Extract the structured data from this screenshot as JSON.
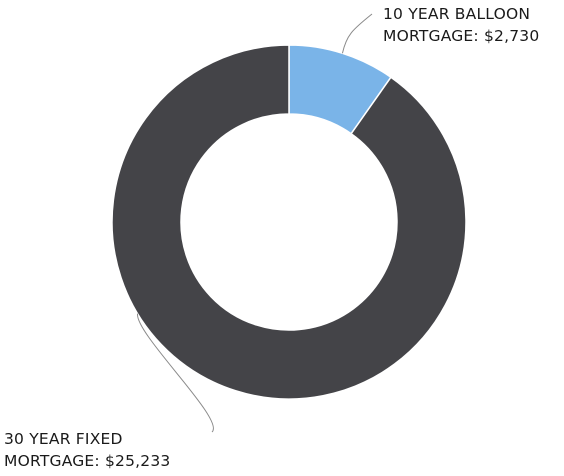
{
  "chart_data": {
    "type": "pie",
    "variant": "donut",
    "categories": [
      "10 YEAR BALLOON MORTGAGE",
      "30 YEAR FIXED MORTGAGE"
    ],
    "values": [
      2730,
      25233
    ],
    "colors": [
      "#7ab4e8",
      "#444448"
    ],
    "labels": [
      {
        "line1": "10 YEAR BALLOON",
        "line2": "MORTGAGE: $2,730"
      },
      {
        "line1": "30 YEAR FIXED",
        "line2": "MORTGAGE: $25,233"
      }
    ],
    "legend": "none"
  }
}
